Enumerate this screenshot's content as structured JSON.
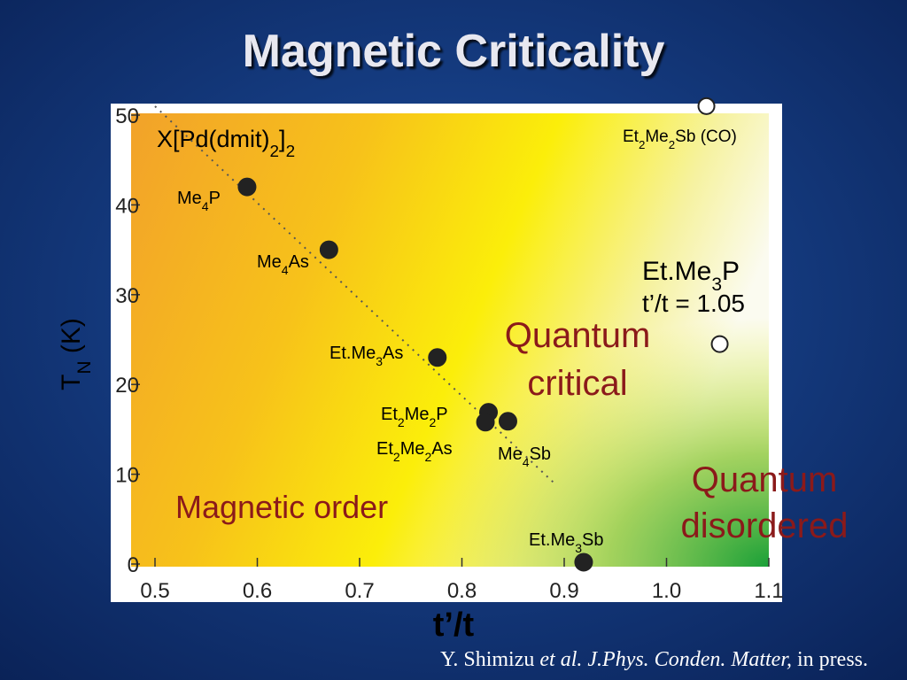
{
  "chart_data": {
    "type": "scatter",
    "title": "Magnetic Criticality",
    "x_label": "t’/t",
    "y_label": "TN (K)",
    "xlim": [
      0.5,
      1.1
    ],
    "ylim": [
      0,
      50
    ],
    "xticks": [
      0.5,
      0.6,
      0.7,
      0.8,
      0.9,
      {
        "value": 1,
        "label": "1.0"
      },
      1.1
    ],
    "yticks": [
      0,
      10,
      20,
      30,
      40,
      50
    ],
    "points": [
      {
        "label": "Me4P",
        "x": 0.59,
        "y": 42,
        "filled": true
      },
      {
        "label": "Me4As",
        "x": 0.67,
        "y": 35,
        "filled": true
      },
      {
        "label": "Et.Me3As",
        "x": 0.776,
        "y": 23,
        "filled": true
      },
      {
        "label": "Et2Me2P",
        "x": 0.826,
        "y": 16.9,
        "filled": true
      },
      {
        "label": "Et2Me2As",
        "x": 0.823,
        "y": 15.8,
        "filled": true
      },
      {
        "label": "Me4Sb",
        "x": 0.845,
        "y": 15.9,
        "filled": true
      },
      {
        "label": "Et.Me3Sb",
        "x": 0.919,
        "y": 0.2,
        "filled": true
      },
      {
        "label": "Et2Me2Sb (CO)",
        "x": 1.039,
        "y": 51,
        "filled": false
      },
      {
        "label": "Et.Me3P",
        "x": 1.052,
        "y": 24.5,
        "filled": false
      }
    ],
    "annotations": {
      "family": "X[Pd(dmit)2]2",
      "etme3p_ratio": "t’/t = 1.05",
      "quantum_critical": [
        "Quantum",
        "critical"
      ],
      "quantum_disordered": [
        "Quantum",
        "disordered"
      ],
      "magnetic_order": "Magnetic order"
    },
    "citation": {
      "authors": "Y. Shimizu",
      "etal": "et al.",
      "journal": "J.Phys. Conden. Matter,",
      "status": "in press."
    }
  }
}
